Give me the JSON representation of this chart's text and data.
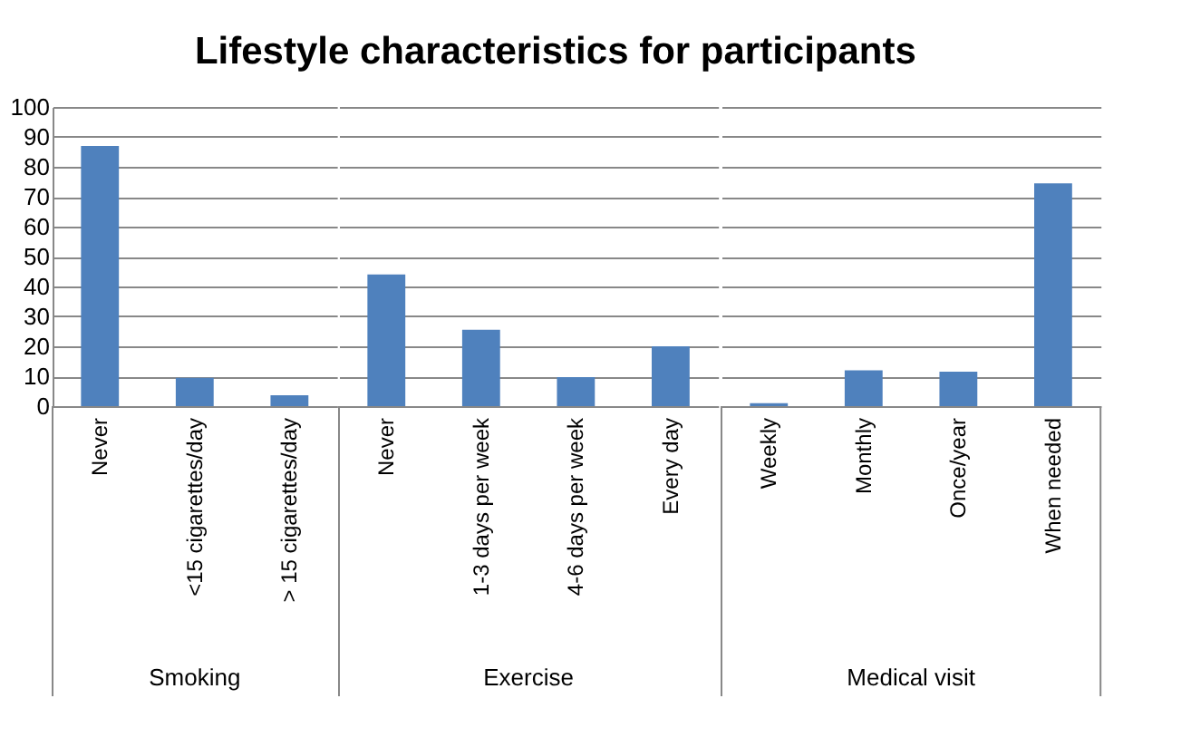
{
  "chart_data": [
    {
      "type": "bar",
      "title": "Lifestyle characteristics for participants",
      "xlabel": "Smoking",
      "categories": [
        "Never",
        "<15 cigarettes/day",
        "> 15 cigarettes/day"
      ],
      "values": [
        87,
        9.5,
        3.6
      ],
      "color": "#4f81bd",
      "ylim": [
        0,
        100
      ],
      "yticks": [
        0,
        10,
        20,
        30,
        40,
        50,
        60,
        70,
        80,
        90,
        100
      ],
      "grid": "y"
    },
    {
      "type": "bar",
      "xlabel": "Exercise",
      "categories": [
        "Never",
        "1-3 days per week",
        "4-6  days  per week",
        "Every day"
      ],
      "values": [
        44,
        25.5,
        9.7,
        20
      ],
      "color": "#4f81bd",
      "ylim": [
        0,
        100
      ],
      "yticks": [
        0,
        10,
        20,
        30,
        40,
        50,
        60,
        70,
        80,
        90,
        100
      ],
      "grid": "y",
      "tick_labels": "x"
    },
    {
      "type": "bar",
      "xlabel": "Medical visit",
      "categories": [
        "Weekly",
        "Monthly",
        "Once/year",
        "When needed"
      ],
      "values": [
        1,
        12,
        11.5,
        74.5
      ],
      "color": "#4f81bd",
      "ylim": [
        0,
        100
      ],
      "yticks": [
        0,
        10,
        20,
        30,
        40,
        50,
        60,
        70,
        80,
        90,
        100
      ],
      "grid": "y",
      "tick_labels": "x"
    }
  ]
}
